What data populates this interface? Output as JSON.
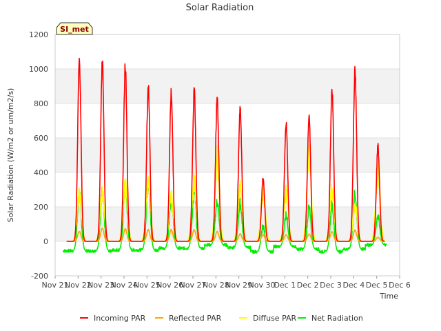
{
  "chart_data": {
    "type": "line",
    "title": "Solar Radiation",
    "xlabel": "Time",
    "ylabel": "Solar Radiation (W/m2 or um/m2/s)",
    "badge": "SI_met",
    "ylim": [
      -200,
      1200
    ],
    "yticks": [
      -200,
      0,
      200,
      400,
      600,
      800,
      1000,
      1200
    ],
    "xlim": [
      0,
      15
    ],
    "xticks": [
      {
        "x": 0,
        "label": "Nov 21"
      },
      {
        "x": 1,
        "label": "Nov 22"
      },
      {
        "x": 2,
        "label": "Nov 23"
      },
      {
        "x": 3,
        "label": "Nov 24"
      },
      {
        "x": 4,
        "label": "Nov 25"
      },
      {
        "x": 5,
        "label": "Nov 26"
      },
      {
        "x": 6,
        "label": "Nov 27"
      },
      {
        "x": 7,
        "label": "Nov 28"
      },
      {
        "x": 8,
        "label": "Nov 29"
      },
      {
        "x": 9,
        "label": "Nov 30"
      },
      {
        "x": 10,
        "label": "Dec 1"
      },
      {
        "x": 11,
        "label": "Dec 2"
      },
      {
        "x": 12,
        "label": "Dec 3"
      },
      {
        "x": 13,
        "label": "Dec 4"
      },
      {
        "x": 14,
        "label": "Dec 5"
      },
      {
        "x": 15,
        "label": "Dec 6"
      }
    ],
    "grid": true,
    "legend_position": "bottom",
    "days": [
      1,
      2,
      3,
      4,
      5,
      6,
      7,
      8,
      9,
      10,
      11,
      12,
      13,
      14
    ],
    "series": [
      {
        "name": "Incoming PAR",
        "color": "#ff0000",
        "daily_peaks": [
          1090,
          1075,
          1055,
          930,
          895,
          910,
          855,
          800,
          375,
          705,
          750,
          905,
          1020,
          570
        ]
      },
      {
        "name": "Reflected PAR",
        "color": "#ffa500",
        "daily_peaks": [
          60,
          80,
          75,
          70,
          70,
          70,
          60,
          45,
          40,
          40,
          45,
          60,
          70,
          25
        ]
      },
      {
        "name": "Diffuse PAR",
        "color": "#ffff00",
        "daily_peaks": [
          300,
          305,
          340,
          370,
          280,
          375,
          510,
          340,
          305,
          305,
          520,
          320,
          220,
          420
        ]
      },
      {
        "name": "Net Radiation",
        "color": "#00ee00",
        "daily_peaks": [
          305,
          305,
          350,
          380,
          280,
          315,
          250,
          240,
          100,
          170,
          210,
          230,
          295,
          165
        ],
        "night_level": [
          -55,
          -55,
          -50,
          -50,
          -40,
          -40,
          -20,
          -35,
          -60,
          -30,
          -45,
          -60,
          -45,
          -20
        ]
      }
    ]
  }
}
